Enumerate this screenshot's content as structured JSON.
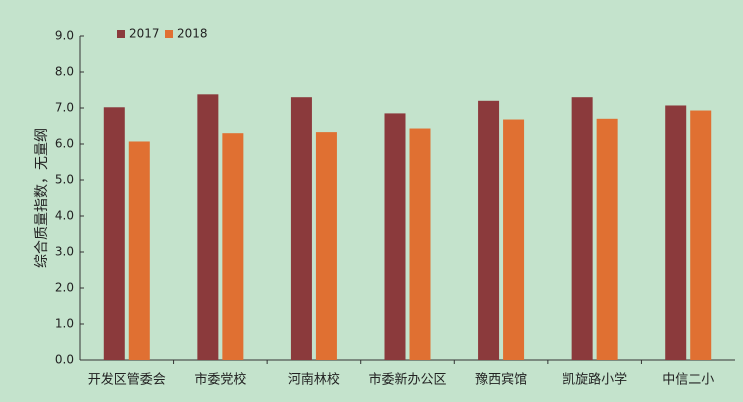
{
  "chart_data": {
    "type": "bar",
    "y_label": "综合质量指数，无量纲",
    "categories": [
      "开发区管委会",
      "市委党校",
      "河南林校",
      "市委新办公区",
      "豫西宾馆",
      "凯旋路小学",
      "中信二小"
    ],
    "series": [
      {
        "name": "2017",
        "color": "#8b3a3c",
        "values": [
          7.02,
          7.38,
          7.3,
          6.85,
          7.2,
          7.3,
          7.07
        ]
      },
      {
        "name": "2018",
        "color": "#e07032",
        "values": [
          6.07,
          6.3,
          6.33,
          6.43,
          6.68,
          6.7,
          6.93
        ]
      }
    ],
    "ylim": [
      0,
      9
    ],
    "yticks": [
      {
        "value": 0,
        "label": "0.0"
      },
      {
        "value": 1,
        "label": "1.0"
      },
      {
        "value": 2,
        "label": "2.0"
      },
      {
        "value": 3,
        "label": "3.0"
      },
      {
        "value": 4,
        "label": "4.0"
      },
      {
        "value": 5,
        "label": "5.0"
      },
      {
        "value": 6,
        "label": "6.0"
      },
      {
        "value": 7,
        "label": "7.0"
      },
      {
        "value": 8,
        "label": "8.0"
      },
      {
        "value": 9,
        "label": "9.0"
      }
    ],
    "legend": "upper left"
  }
}
